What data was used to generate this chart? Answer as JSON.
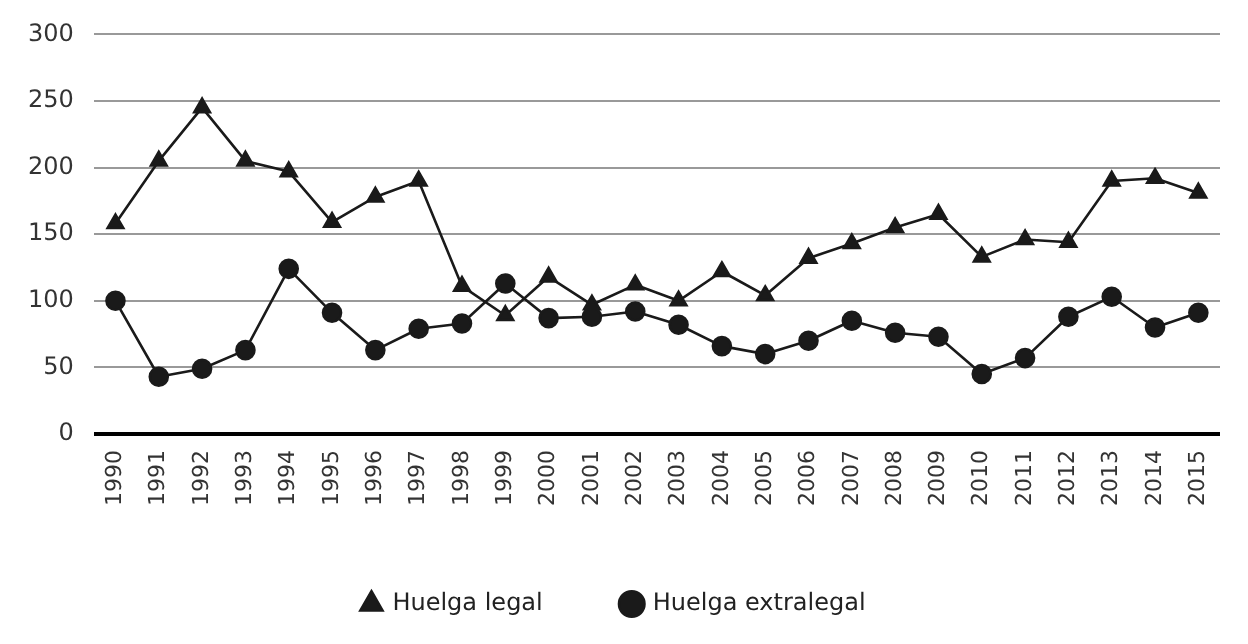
{
  "chart_data": {
    "type": "line",
    "categories": [
      "1990",
      "1991",
      "1992",
      "1993",
      "1994",
      "1995",
      "1996",
      "1997",
      "1998",
      "1999",
      "2000",
      "2001",
      "2002",
      "2003",
      "2004",
      "2005",
      "2006",
      "2007",
      "2008",
      "2009",
      "2010",
      "2011",
      "2012",
      "2013",
      "2014",
      "2015"
    ],
    "series": [
      {
        "name": "Huelga legal",
        "color": "#1a1a1a",
        "marker": "triangle",
        "values": [
          158,
          205,
          245,
          205,
          197,
          159,
          178,
          190,
          111,
          89,
          118,
          97,
          112,
          100,
          122,
          104,
          132,
          143,
          155,
          165,
          133,
          146,
          144,
          190,
          192,
          181
        ]
      },
      {
        "name": "Huelga extralegal",
        "color": "#1a1a1a",
        "marker": "circle",
        "values": [
          100,
          43,
          49,
          63,
          124,
          91,
          63,
          79,
          83,
          113,
          87,
          88,
          92,
          82,
          66,
          60,
          70,
          85,
          76,
          73,
          45,
          57,
          88,
          103,
          80,
          91
        ]
      }
    ],
    "ylim": [
      0,
      300
    ],
    "yticks": [
      0,
      50,
      100,
      150,
      200,
      250,
      300
    ],
    "grid": "y",
    "legend": "bottom",
    "line_style": "solid"
  }
}
